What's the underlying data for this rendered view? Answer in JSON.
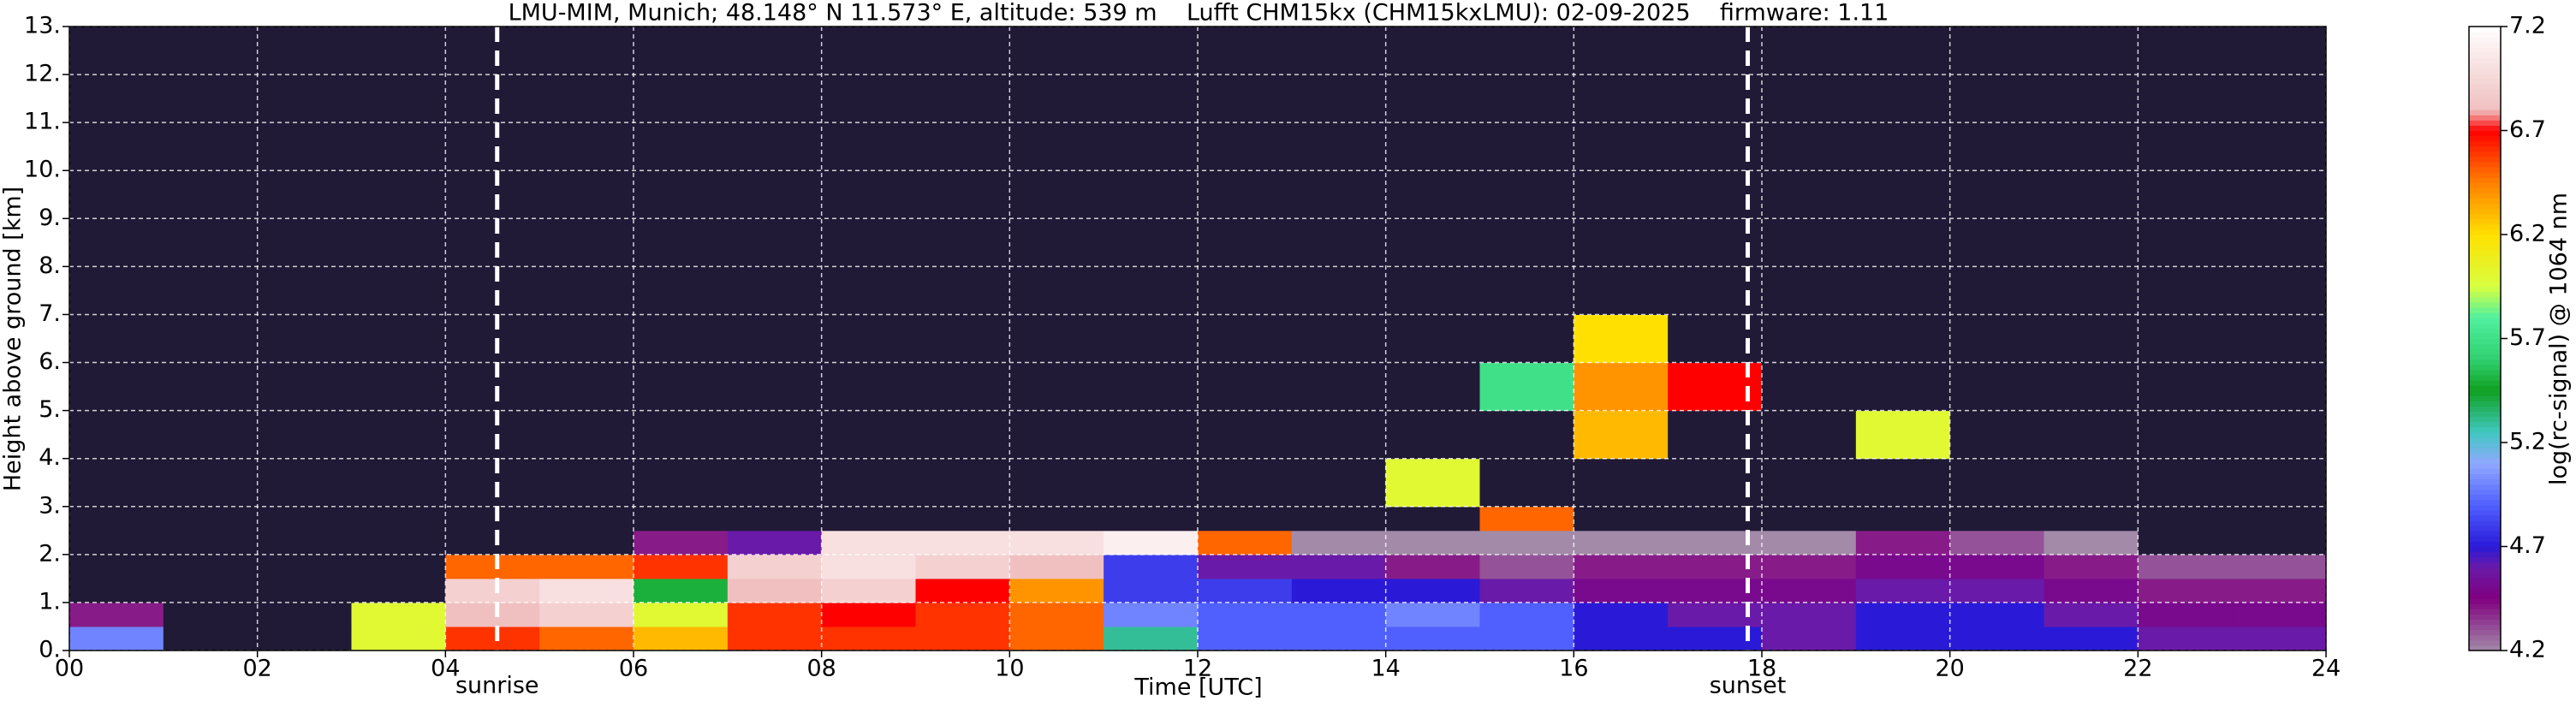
{
  "chart_data": {
    "type": "heatmap",
    "title": "LMU-MIM, Munich; 48.148° N 11.573° E, altitude: 539 m    Lufft CHM15kx (CHM15kxLMU): 02-09-2025    firmware: 1.11",
    "xlabel": "Time [UTC]",
    "ylabel": "Height above ground [km]",
    "colorbar_label": "log(rc-signal) @ 1064 nm",
    "x_edges": [
      0,
      1,
      2,
      3,
      4,
      5,
      6,
      7,
      8,
      9,
      10,
      11,
      12,
      13,
      14,
      15,
      16,
      17,
      18,
      19,
      20,
      21,
      22,
      23,
      24
    ],
    "y_edges": [
      0,
      0.5,
      1,
      1.5,
      2,
      2.5,
      3,
      4,
      5,
      6,
      7,
      8,
      10,
      13
    ],
    "z": [
      [
        5.0,
        4.0,
        4.0,
        6.0,
        6.6,
        6.5,
        6.3,
        6.6,
        6.6,
        6.6,
        6.5,
        5.3,
        4.9,
        4.9,
        4.9,
        4.9,
        4.7,
        4.7,
        4.6,
        4.7,
        4.7,
        4.7,
        4.6,
        4.6
      ],
      [
        4.4,
        4.0,
        4.0,
        6.0,
        6.8,
        6.9,
        6.0,
        6.6,
        6.7,
        6.6,
        6.5,
        5.0,
        4.9,
        4.9,
        5.0,
        4.9,
        4.7,
        4.6,
        4.6,
        4.7,
        4.7,
        4.6,
        4.5,
        4.5
      ],
      [
        4.0,
        4.0,
        4.0,
        4.1,
        6.9,
        7.0,
        5.5,
        6.8,
        6.9,
        6.7,
        6.4,
        4.8,
        4.8,
        4.7,
        4.7,
        4.6,
        4.5,
        4.5,
        4.5,
        4.6,
        4.6,
        4.5,
        4.4,
        4.4
      ],
      [
        4.0,
        4.0,
        4.0,
        4.0,
        6.5,
        6.5,
        6.6,
        6.9,
        7.0,
        6.9,
        6.8,
        4.8,
        4.6,
        4.6,
        4.4,
        4.3,
        4.4,
        4.4,
        4.4,
        4.5,
        4.5,
        4.4,
        4.3,
        4.3
      ],
      [
        4.0,
        4.0,
        4.0,
        4.0,
        4.1,
        4.1,
        4.4,
        4.6,
        7.0,
        7.0,
        7.0,
        7.1,
        6.5,
        4.2,
        4.2,
        4.2,
        4.2,
        4.2,
        4.2,
        4.4,
        4.3,
        4.2,
        4.1,
        4.0
      ],
      [
        4.0,
        4.0,
        4.0,
        4.0,
        4.0,
        4.0,
        4.0,
        4.0,
        4.0,
        4.0,
        4.0,
        4.0,
        4.0,
        4.0,
        4.0,
        6.5,
        4.0,
        4.0,
        4.0,
        4.0,
        4.0,
        4.0,
        4.0,
        4.0
      ],
      [
        4.0,
        4.0,
        4.0,
        4.0,
        4.0,
        4.0,
        4.0,
        4.0,
        4.0,
        4.0,
        4.0,
        4.0,
        4.0,
        4.0,
        6.0,
        4.0,
        4.0,
        4.0,
        4.0,
        4.0,
        4.0,
        4.0,
        4.0,
        4.0
      ],
      [
        4.0,
        4.0,
        4.0,
        4.0,
        4.0,
        4.0,
        4.0,
        4.0,
        4.0,
        4.0,
        4.0,
        4.0,
        4.0,
        4.0,
        4.0,
        4.0,
        6.3,
        4.0,
        4.0,
        6.0,
        4.0,
        4.0,
        4.0,
        4.0
      ],
      [
        4.0,
        4.0,
        4.0,
        4.0,
        4.0,
        4.0,
        4.0,
        4.0,
        4.0,
        4.0,
        4.0,
        4.0,
        4.0,
        4.0,
        4.0,
        5.7,
        6.4,
        6.7,
        4.0,
        4.0,
        4.0,
        4.0,
        4.0,
        4.0
      ],
      [
        4.0,
        4.0,
        4.0,
        4.0,
        4.0,
        4.0,
        4.0,
        4.0,
        4.0,
        4.0,
        4.0,
        4.0,
        4.0,
        4.0,
        4.0,
        4.0,
        6.2,
        4.0,
        4.0,
        4.0,
        4.0,
        4.0,
        4.0,
        4.0
      ],
      [
        4.0,
        4.0,
        4.0,
        4.0,
        4.0,
        4.0,
        4.0,
        4.0,
        4.0,
        4.0,
        4.0,
        4.0,
        4.0,
        4.0,
        4.0,
        4.0,
        4.0,
        4.0,
        4.0,
        4.0,
        4.0,
        4.0,
        4.0,
        4.0
      ],
      [
        4.0,
        4.0,
        4.0,
        4.0,
        4.0,
        4.0,
        4.0,
        4.0,
        4.0,
        4.0,
        4.0,
        4.0,
        4.0,
        4.0,
        4.0,
        4.0,
        4.0,
        4.0,
        4.0,
        4.0,
        4.0,
        4.0,
        4.0,
        4.0
      ],
      [
        4.0,
        4.0,
        4.0,
        4.0,
        4.0,
        4.0,
        4.0,
        4.0,
        4.0,
        4.0,
        4.0,
        4.0,
        4.0,
        4.0,
        4.0,
        4.0,
        4.0,
        4.0,
        4.0,
        4.0,
        4.0,
        4.0,
        4.0,
        4.0
      ]
    ],
    "xlim": [
      0,
      24
    ],
    "xticks": [
      {
        "value": 0,
        "label": "00"
      },
      {
        "value": 2,
        "label": "02"
      },
      {
        "value": 4,
        "label": "04"
      },
      {
        "value": 6,
        "label": "06"
      },
      {
        "value": 8,
        "label": "08"
      },
      10,
      12,
      14,
      16,
      18,
      20,
      22,
      24
    ],
    "ylim": [
      0,
      13
    ],
    "yticks": [
      {
        "value": 0,
        "label": "0."
      },
      {
        "value": 1,
        "label": "1."
      },
      {
        "value": 2,
        "label": "2."
      },
      {
        "value": 3,
        "label": "3."
      },
      {
        "value": 4,
        "label": "4."
      },
      {
        "value": 5,
        "label": "5."
      },
      {
        "value": 6,
        "label": "6."
      },
      {
        "value": 7,
        "label": "7."
      },
      {
        "value": 8,
        "label": "8."
      },
      {
        "value": 9,
        "label": "9."
      },
      {
        "value": 10,
        "label": "10."
      },
      {
        "value": 11,
        "label": "11."
      },
      {
        "value": 12,
        "label": "12."
      },
      {
        "value": 13,
        "label": "13."
      }
    ],
    "clim": [
      4.2,
      7.2
    ],
    "cticks": [
      4.2,
      4.7,
      5.2,
      5.7,
      6.2,
      6.7,
      7.2
    ],
    "under_color": "#201a36",
    "colormap": [
      [
        4.2,
        "#a28aa8"
      ],
      [
        4.45,
        "#800080"
      ],
      [
        4.6,
        "#6a1aa8"
      ],
      [
        4.7,
        "#2a1ad8"
      ],
      [
        4.9,
        "#5060ff"
      ],
      [
        5.1,
        "#90a8ff"
      ],
      [
        5.25,
        "#40c8c0"
      ],
      [
        5.45,
        "#10a020"
      ],
      [
        5.6,
        "#30d070"
      ],
      [
        5.8,
        "#50f0a0"
      ],
      [
        5.95,
        "#d8ff40"
      ],
      [
        6.2,
        "#ffe000"
      ],
      [
        6.45,
        "#ff8000"
      ],
      [
        6.7,
        "#ff0000"
      ],
      [
        6.8,
        "#f0c0c0"
      ],
      [
        7.2,
        "#ffffff"
      ]
    ],
    "grid": true,
    "annotations": [
      {
        "text": "sunrise",
        "x": 4.55
      },
      {
        "text": "sunset",
        "x": 17.85
      }
    ]
  }
}
